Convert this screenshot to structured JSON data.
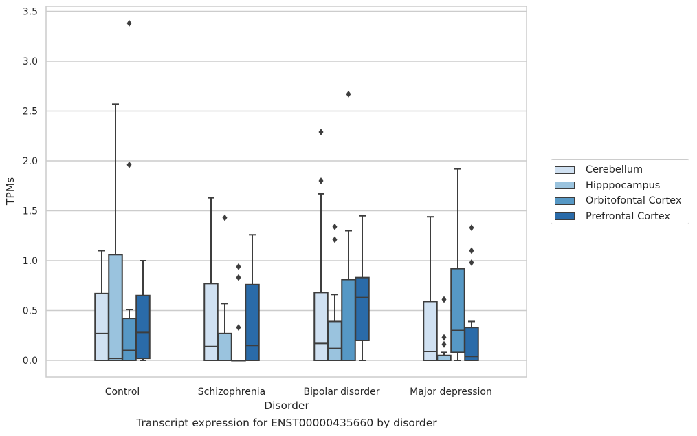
{
  "chart_data": {
    "type": "boxplot",
    "xlabel": "Disorder",
    "ylabel": "TPMs",
    "ylim": [
      -0.17,
      3.57
    ],
    "yticks": [
      0.0,
      0.5,
      1.0,
      1.5,
      2.0,
      2.5,
      3.0,
      3.5
    ],
    "ytick_labels": [
      "0.0",
      "0.5",
      "1.0",
      "1.5",
      "2.0",
      "2.5",
      "3.0",
      "3.5"
    ],
    "grid": "horizontal",
    "legend_position": "right",
    "categories": [
      "Control",
      "Schizophrenia",
      "Bipolar disorder",
      "Major depression"
    ],
    "series": [
      {
        "name": "Cerebellum",
        "color": "#d0e1f2",
        "boxes": [
          {
            "whislo": 0.0,
            "q1": 0.0,
            "med": 0.27,
            "q3": 0.67,
            "whishi": 1.1,
            "fliers": []
          },
          {
            "whislo": 0.0,
            "q1": 0.0,
            "med": 0.14,
            "q3": 0.77,
            "whishi": 1.63,
            "fliers": []
          },
          {
            "whislo": 0.0,
            "q1": 0.0,
            "med": 0.17,
            "q3": 0.68,
            "whishi": 1.67,
            "fliers": [
              1.8,
              2.29
            ]
          },
          {
            "whislo": 0.0,
            "q1": 0.0,
            "med": 0.09,
            "q3": 0.59,
            "whishi": 1.44,
            "fliers": []
          }
        ]
      },
      {
        "name": "Hipppocampus",
        "color": "#9ac3de",
        "boxes": [
          {
            "whislo": 0.0,
            "q1": 0.0,
            "med": 0.02,
            "q3": 1.06,
            "whishi": 2.57,
            "fliers": []
          },
          {
            "whislo": 0.0,
            "q1": 0.0,
            "med": 0.0,
            "q3": 0.27,
            "whishi": 0.57,
            "fliers": [
              1.43
            ]
          },
          {
            "whislo": 0.0,
            "q1": 0.0,
            "med": 0.12,
            "q3": 0.39,
            "whishi": 0.66,
            "fliers": [
              1.21,
              1.34
            ]
          },
          {
            "whislo": 0.0,
            "q1": 0.0,
            "med": 0.0,
            "q3": 0.05,
            "whishi": 0.08,
            "fliers": [
              0.16,
              0.23,
              0.61
            ]
          }
        ]
      },
      {
        "name": "Orbitofontal Cortex",
        "color": "#5698c5",
        "boxes": [
          {
            "whislo": 0.0,
            "q1": 0.0,
            "med": 0.1,
            "q3": 0.42,
            "whishi": 0.51,
            "fliers": [
              1.96,
              3.38
            ]
          },
          {
            "whislo": 0.0,
            "q1": 0.0,
            "med": 0.0,
            "q3": 0.0,
            "whishi": 0.0,
            "fliers": [
              0.33,
              0.83,
              0.94
            ]
          },
          {
            "whislo": 0.0,
            "q1": 0.0,
            "med": 0.0,
            "q3": 0.81,
            "whishi": 1.3,
            "fliers": [
              2.67
            ]
          },
          {
            "whislo": 0.0,
            "q1": 0.08,
            "med": 0.3,
            "q3": 0.92,
            "whishi": 1.92,
            "fliers": []
          }
        ]
      },
      {
        "name": "Prefrontal Cortex",
        "color": "#2a6ba9",
        "boxes": [
          {
            "whislo": 0.0,
            "q1": 0.02,
            "med": 0.28,
            "q3": 0.65,
            "whishi": 1.0,
            "fliers": []
          },
          {
            "whislo": 0.0,
            "q1": 0.0,
            "med": 0.15,
            "q3": 0.76,
            "whishi": 1.26,
            "fliers": []
          },
          {
            "whislo": 0.0,
            "q1": 0.2,
            "med": 0.63,
            "q3": 0.83,
            "whishi": 1.45,
            "fliers": []
          },
          {
            "whislo": 0.0,
            "q1": 0.0,
            "med": 0.04,
            "q3": 0.33,
            "whishi": 0.39,
            "fliers": [
              0.98,
              1.1,
              1.33
            ]
          }
        ]
      }
    ]
  },
  "caption": "Transcript expression for ENST00000435660 by disorder"
}
